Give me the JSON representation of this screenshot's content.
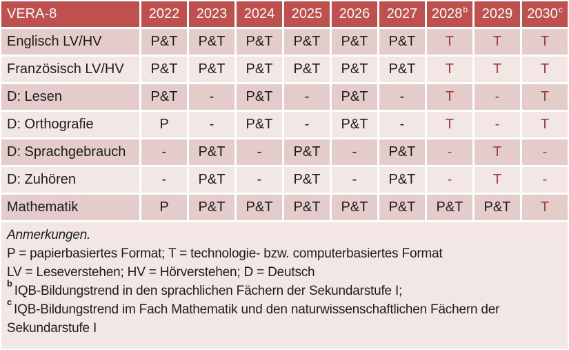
{
  "colors": {
    "header_bg": "#C0504D",
    "header_text": "#FFFFFF",
    "row_band_dark": "#E4CCCA",
    "row_band_light": "#F2E7E5",
    "accent_text": "#9E3A35",
    "body_text": "#1C1C1C",
    "grid_lines": "#FFFFFF"
  },
  "table": {
    "title_cell": "VERA-8",
    "year_columns": [
      {
        "label": "2022",
        "sup": ""
      },
      {
        "label": "2023",
        "sup": ""
      },
      {
        "label": "2024",
        "sup": ""
      },
      {
        "label": "2025",
        "sup": ""
      },
      {
        "label": "2026",
        "sup": ""
      },
      {
        "label": "2027",
        "sup": ""
      },
      {
        "label": "2028",
        "sup": "b"
      },
      {
        "label": "2029",
        "sup": ""
      },
      {
        "label": "2030",
        "sup": "c"
      }
    ],
    "rows": [
      {
        "label": "Englisch LV/HV",
        "band": "dark",
        "values": [
          "P&T",
          "P&T",
          "P&T",
          "P&T",
          "P&T",
          "P&T",
          "T",
          "T",
          "T"
        ],
        "accent": [
          false,
          false,
          false,
          false,
          false,
          false,
          true,
          true,
          true
        ]
      },
      {
        "label": "Französisch LV/HV",
        "band": "light",
        "values": [
          "P&T",
          "P&T",
          "P&T",
          "P&T",
          "P&T",
          "P&T",
          "T",
          "T",
          "T"
        ],
        "accent": [
          false,
          false,
          false,
          false,
          false,
          false,
          true,
          true,
          true
        ]
      },
      {
        "label": "D: Lesen",
        "band": "dark",
        "values": [
          "P&T",
          "-",
          "P&T",
          "-",
          "P&T",
          "-",
          "T",
          "-",
          "T"
        ],
        "accent": [
          false,
          false,
          false,
          false,
          false,
          false,
          true,
          true,
          true
        ]
      },
      {
        "label": "D: Orthografie",
        "band": "light",
        "values": [
          "P",
          "-",
          "P&T",
          "-",
          "P&T",
          "-",
          "T",
          "-",
          "T"
        ],
        "accent": [
          false,
          false,
          false,
          false,
          false,
          false,
          true,
          true,
          true
        ]
      },
      {
        "label": "D: Sprachgebrauch",
        "band": "dark",
        "values": [
          "-",
          "P&T",
          "-",
          "P&T",
          "-",
          "P&T",
          "-",
          "T",
          "-"
        ],
        "accent": [
          false,
          false,
          false,
          false,
          false,
          false,
          true,
          true,
          true
        ]
      },
      {
        "label": "D: Zuhören",
        "band": "light",
        "values": [
          "-",
          "P&T",
          "-",
          "P&T",
          "-",
          "P&T",
          "-",
          "T",
          "-"
        ],
        "accent": [
          false,
          false,
          false,
          false,
          false,
          false,
          true,
          true,
          true
        ]
      },
      {
        "label": "Mathematik",
        "band": "dark",
        "values": [
          "P",
          "P&T",
          "P&T",
          "P&T",
          "P&T",
          "P&T",
          "P&T",
          "P&T",
          "T"
        ],
        "accent": [
          false,
          false,
          false,
          false,
          false,
          false,
          false,
          false,
          true
        ]
      }
    ]
  },
  "notes": {
    "lines": [
      {
        "sup": "",
        "italic": true,
        "text": "Anmerkungen."
      },
      {
        "sup": "",
        "italic": false,
        "text": "P = papierbasiertes Format; T = technologie- bzw. computerbasiertes Format"
      },
      {
        "sup": "",
        "italic": false,
        "text": "LV = Leseverstehen; HV = Hörverstehen; D = Deutsch"
      },
      {
        "sup": "b",
        "italic": false,
        "text": "IQB-Bildungstrend in den sprachlichen Fächern der Sekundarstufe I;"
      },
      {
        "sup": "c",
        "italic": false,
        "text": "IQB-Bildungstrend im Fach Mathematik und den naturwissenschaftlichen Fächern der Sekundarstufe I"
      }
    ]
  }
}
